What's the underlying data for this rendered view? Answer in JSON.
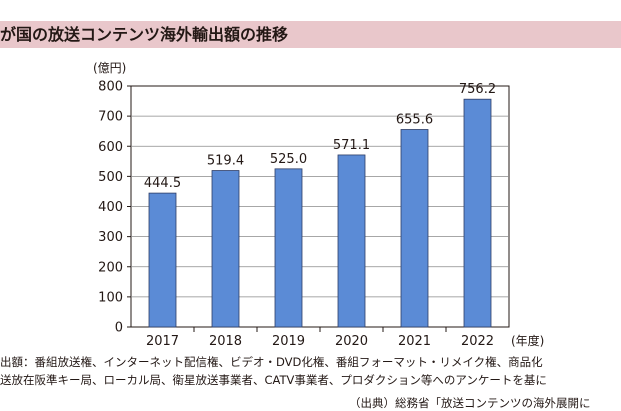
{
  "chart_data": {
    "type": "bar",
    "title": "が国の放送コンテンツ海外輸出額の推移",
    "y_unit_label": "(億円)",
    "x_unit_label": "(年度)",
    "categories": [
      "2017",
      "2018",
      "2019",
      "2020",
      "2021",
      "2022"
    ],
    "values": [
      444.5,
      519.4,
      525.0,
      571.1,
      655.6,
      756.2
    ],
    "value_labels": [
      "444.5",
      "519.4",
      "525.0",
      "571.1",
      "655.6",
      "756.2"
    ],
    "ylim": [
      0,
      800
    ],
    "y_ticks": [
      0,
      100,
      200,
      300,
      400,
      500,
      600,
      700,
      800
    ],
    "grid": true,
    "bar_color": "#5b8bd6",
    "bar_edge_color": "#2e3d66"
  },
  "notes": [
    "出額：番組放送権、インターネット配信権、ビデオ・DVD化権、番組フォーマット・リメイク権、商品化",
    "送放在阪準キー局、ローカル局、衛星放送事業者、CATV事業者、プロダクション等へのアンケートを基に"
  ],
  "source": "（出典）総務省「放送コンテンツの海外展開に"
}
